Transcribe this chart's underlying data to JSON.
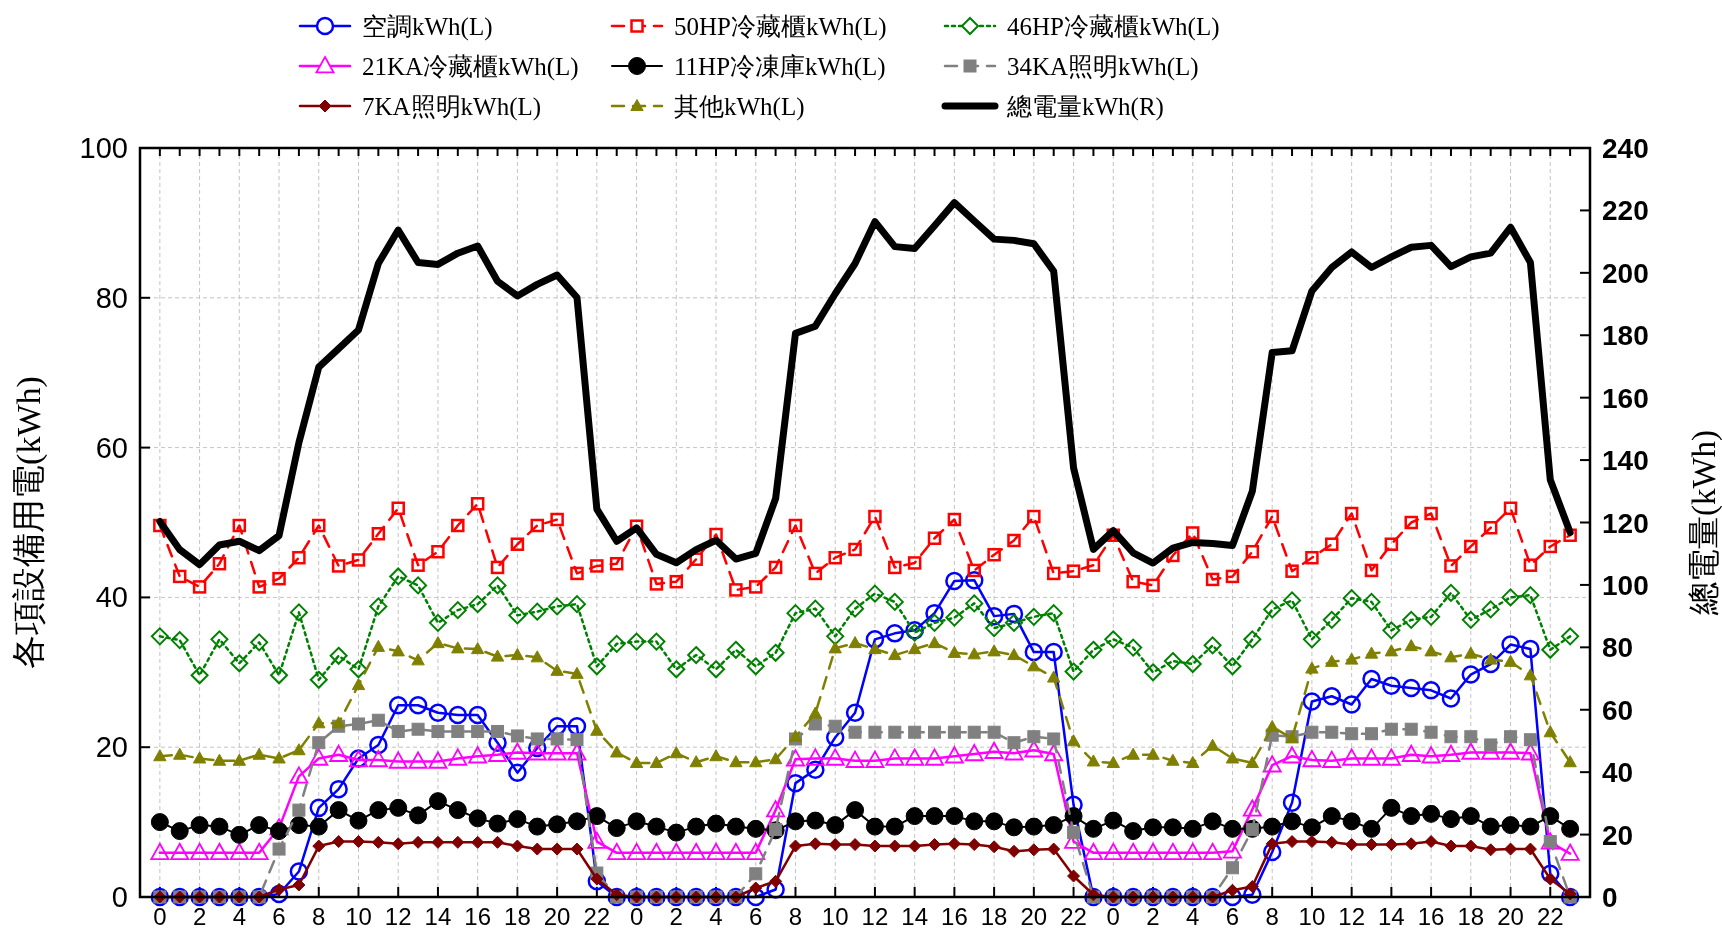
{
  "chart_data": {
    "type": "line",
    "categories": [
      "0",
      null,
      "2",
      null,
      "4",
      null,
      "6",
      null,
      "8",
      null,
      "10",
      null,
      "12",
      null,
      "14",
      null,
      "16",
      null,
      "18",
      null,
      "20",
      null,
      "22",
      null,
      "0",
      null,
      "2",
      null,
      "4",
      null,
      "6",
      null,
      "8",
      null,
      "10",
      null,
      "12",
      null,
      "14",
      null,
      "16",
      null,
      "18",
      null,
      "20",
      null,
      "22",
      null,
      "0",
      null,
      "2",
      null,
      "4",
      null,
      "6",
      null,
      "8",
      null,
      "10",
      null,
      "12",
      null,
      "14",
      null,
      "16",
      null,
      "18",
      null,
      "20",
      null,
      "22",
      null
    ],
    "ylabel": "各項設備用電(kWh)",
    "y2label": "總電量(kWh)",
    "ylim": [
      0,
      100
    ],
    "yticks": [
      0,
      20,
      40,
      60,
      80,
      100
    ],
    "y2lim": [
      0,
      240
    ],
    "y2ticks": [
      0,
      20,
      40,
      60,
      80,
      100,
      120,
      140,
      160,
      180,
      200,
      220,
      240
    ],
    "grid": true,
    "legend": "top",
    "series": [
      {
        "name": "空調kWh(L)",
        "color": "#0000ff",
        "marker": "circle",
        "line_style": "solid",
        "values": [
          0,
          0,
          0,
          0,
          0,
          0,
          0.4,
          3.4,
          11.9,
          14.4,
          18.5,
          20.3,
          25.6,
          25.6,
          24.6,
          24.3,
          24.3,
          20.6,
          16.6,
          19.9,
          22.8,
          22.8,
          2.1,
          0,
          0,
          0,
          0,
          0,
          0,
          0,
          0,
          1.0,
          15.2,
          17.0,
          21.3,
          24.6,
          34.4,
          35.2,
          35.6,
          37.9,
          42.2,
          42.3,
          37.5,
          37.8,
          32.7,
          32.7,
          12.3,
          0,
          0,
          0,
          0,
          0,
          0,
          0,
          0,
          0.3,
          6.0,
          12.6,
          26.1,
          26.8,
          25.7,
          29.1,
          28.2,
          27.9,
          27.6,
          26.5,
          29.7,
          31.1,
          33.7,
          33.1,
          3.1,
          0
        ]
      },
      {
        "name": "50HP冷藏櫃kWh(L)",
        "color": "#ff0000",
        "marker": "square",
        "line_style": "dashed",
        "values": [
          49.6,
          42.8,
          41.4,
          44.5,
          49.6,
          41.4,
          42.5,
          45.3,
          49.6,
          44.2,
          45.0,
          48.5,
          51.9,
          44.3,
          46.1,
          49.6,
          52.5,
          44.0,
          47.1,
          49.6,
          50.4,
          43.2,
          44.2,
          44.5,
          49.5,
          41.8,
          42.1,
          45.1,
          48.4,
          41.0,
          41.4,
          44.0,
          49.6,
          43.2,
          45.3,
          46.4,
          50.8,
          44.0,
          44.6,
          47.9,
          50.4,
          43.6,
          45.7,
          47.6,
          50.8,
          43.2,
          43.5,
          44.3,
          48.3,
          42.1,
          41.6,
          45.6,
          48.6,
          42.4,
          42.8,
          46.1,
          50.8,
          43.5,
          45.3,
          47.1,
          51.2,
          43.6,
          47.1,
          50.0,
          51.2,
          44.2,
          46.8,
          49.3,
          51.9,
          44.3,
          46.8,
          48.3
        ]
      },
      {
        "name": "46HP冷藏櫃kWh(L)",
        "color": "#008000",
        "marker": "diamond",
        "line_style": "dotted",
        "values": [
          34.8,
          34.3,
          29.6,
          34.4,
          31.2,
          34.0,
          29.6,
          38.0,
          29.0,
          32.2,
          30.4,
          38.8,
          42.8,
          41.6,
          36.6,
          38.3,
          39.1,
          41.6,
          37.6,
          38.1,
          38.8,
          39.1,
          30.8,
          33.8,
          34.1,
          34.1,
          30.4,
          32.3,
          30.4,
          33.0,
          30.8,
          32.6,
          37.9,
          38.5,
          34.8,
          38.5,
          40.5,
          39.4,
          35.3,
          36.6,
          37.3,
          39.2,
          35.9,
          36.6,
          37.4,
          37.9,
          30.1,
          33.0,
          34.4,
          33.3,
          30.0,
          31.5,
          31.1,
          33.6,
          30.8,
          34.4,
          38.4,
          39.6,
          34.4,
          37.0,
          39.9,
          39.4,
          35.6,
          37.0,
          37.4,
          40.6,
          37.0,
          38.4,
          40.0,
          40.3,
          33.0,
          34.8
        ]
      },
      {
        "name": "21KA冷藏櫃kWh(L)",
        "color": "#ff00ff",
        "marker": "triangle",
        "line_style": "solid",
        "values": [
          5.9,
          5.9,
          5.9,
          5.9,
          5.9,
          5.9,
          9.2,
          16.1,
          18.5,
          19.0,
          18.3,
          18.3,
          18.1,
          18.1,
          18.1,
          18.5,
          18.8,
          19.0,
          19.3,
          19.2,
          19.2,
          19.2,
          7.4,
          5.9,
          5.9,
          5.9,
          5.9,
          5.9,
          5.9,
          5.9,
          5.9,
          11.6,
          18.4,
          18.5,
          18.5,
          18.2,
          18.2,
          18.5,
          18.5,
          18.5,
          18.8,
          19.1,
          19.4,
          19.2,
          19.6,
          19.1,
          7.4,
          5.9,
          5.9,
          5.9,
          5.9,
          5.9,
          5.9,
          5.9,
          6.1,
          11.7,
          17.6,
          18.8,
          18.3,
          18.2,
          18.5,
          18.5,
          18.5,
          19.0,
          18.8,
          19.0,
          19.3,
          19.3,
          19.3,
          19.2,
          7.3,
          5.8
        ]
      },
      {
        "name": "11HP冷凍庫kWh(L)",
        "color": "#000000",
        "marker": "circle",
        "line_style": "solid",
        "values": [
          10.0,
          8.8,
          9.6,
          9.4,
          8.3,
          9.6,
          8.8,
          9.6,
          9.4,
          11.6,
          10.2,
          11.6,
          11.9,
          10.9,
          12.8,
          11.6,
          10.5,
          9.8,
          10.4,
          9.4,
          9.7,
          10.1,
          10.8,
          9.2,
          10.1,
          9.4,
          8.6,
          9.4,
          9.8,
          9.4,
          9.1,
          8.9,
          10.1,
          10.2,
          9.6,
          11.6,
          9.4,
          9.4,
          10.8,
          10.8,
          10.8,
          10.1,
          10.1,
          9.3,
          9.4,
          9.6,
          10.8,
          9.1,
          10.2,
          8.8,
          9.3,
          9.3,
          9.1,
          10.1,
          9.1,
          9.1,
          9.4,
          10.1,
          9.3,
          10.8,
          10.1,
          9.1,
          11.9,
          10.8,
          11.1,
          10.4,
          10.8,
          9.4,
          9.6,
          9.4,
          10.8,
          9.1
        ]
      },
      {
        "name": "34KA照明kWh(L)",
        "color": "#808080",
        "marker": "square",
        "line_style": "dashed",
        "values": [
          0,
          0,
          0,
          0,
          0,
          0,
          6.4,
          11.6,
          20.6,
          22.8,
          23.1,
          23.6,
          22.1,
          22.4,
          22.1,
          22.1,
          22.1,
          22.1,
          21.5,
          21.1,
          21.1,
          21.0,
          3.2,
          0,
          0,
          0,
          0,
          0,
          0,
          0,
          3.1,
          9.0,
          21.1,
          23.1,
          22.8,
          22.0,
          22.0,
          22.0,
          22.0,
          22.0,
          22.0,
          22.0,
          22.0,
          20.6,
          21.4,
          21.1,
          8.6,
          0,
          0,
          0,
          0,
          0,
          0,
          0,
          3.9,
          9.0,
          21.6,
          21.4,
          22.0,
          22.0,
          21.8,
          21.8,
          22.4,
          22.4,
          22.0,
          21.4,
          21.4,
          20.3,
          21.4,
          21.0,
          7.4,
          0
        ]
      },
      {
        "name": "7KA照明kWh(L)",
        "color": "#800000",
        "marker": "diamond",
        "line_style": "solid",
        "values": [
          0,
          0,
          0,
          0,
          0,
          0,
          1.0,
          1.6,
          6.8,
          7.4,
          7.4,
          7.3,
          7.1,
          7.3,
          7.3,
          7.3,
          7.3,
          7.3,
          6.8,
          6.4,
          6.4,
          6.4,
          2.4,
          0.3,
          0,
          0,
          0,
          0,
          0,
          0,
          1.2,
          2.1,
          6.8,
          7.1,
          7.0,
          7.0,
          6.8,
          6.8,
          6.8,
          7.0,
          7.1,
          7.0,
          6.7,
          6.1,
          6.3,
          6.4,
          2.8,
          0.3,
          0,
          0,
          0,
          0,
          0,
          0,
          0.9,
          1.4,
          7.1,
          7.4,
          7.4,
          7.3,
          7.0,
          7.0,
          7.0,
          7.1,
          7.4,
          6.8,
          6.8,
          6.3,
          6.4,
          6.4,
          2.4,
          0.4
        ]
      },
      {
        "name": "其他kWh(L)",
        "color": "#808000",
        "marker": "triangle",
        "line_style": "dashed",
        "values": [
          18.8,
          19.0,
          18.5,
          18.2,
          18.2,
          19.0,
          18.5,
          19.6,
          23.2,
          23.2,
          28.3,
          33.4,
          32.8,
          31.6,
          33.9,
          33.2,
          33.1,
          32.1,
          32.3,
          32.0,
          30.2,
          29.8,
          22.2,
          19.3,
          17.9,
          17.9,
          19.2,
          18.0,
          18.8,
          18.0,
          18.0,
          18.4,
          21.4,
          24.5,
          33.2,
          33.9,
          33.1,
          32.3,
          33.1,
          33.9,
          32.6,
          32.4,
          32.8,
          32.3,
          30.8,
          29.3,
          20.8,
          18.1,
          17.9,
          19.0,
          19.0,
          18.2,
          17.9,
          20.2,
          18.5,
          17.9,
          22.7,
          21.2,
          30.5,
          31.4,
          31.7,
          32.5,
          32.8,
          33.5,
          32.8,
          32.0,
          32.5,
          31.7,
          31.4,
          29.6,
          22.0,
          18.0
        ]
      },
      {
        "name": "總電量kWh(R)",
        "color": "#000000",
        "marker": "none",
        "line_style": "solid",
        "axis": "y2",
        "values": [
          120.3,
          111.3,
          106.5,
          112.8,
          114.0,
          111.0,
          115.8,
          145.6,
          169.8,
          175.7,
          181.7,
          203.0,
          213.7,
          203.3,
          202.7,
          206.3,
          208.6,
          197.3,
          192.6,
          196.3,
          199.3,
          192.1,
          124.3,
          114.0,
          118.3,
          109.8,
          107.1,
          111.3,
          114.3,
          108.3,
          110.1,
          127.7,
          180.6,
          182.9,
          193.3,
          203.0,
          216.4,
          208.4,
          207.8,
          215.1,
          222.5,
          216.6,
          210.8,
          210.4,
          209.3,
          200.5,
          137.5,
          111.4,
          117.4,
          110.3,
          107.0,
          111.8,
          113.6,
          113.3,
          112.6,
          130.0,
          174.5,
          175.0,
          194.2,
          201.7,
          206.7,
          201.7,
          205.1,
          208.2,
          208.8,
          202.0,
          205.1,
          206.3,
          214.6,
          203.3,
          133.7,
          116.8
        ]
      }
    ]
  }
}
